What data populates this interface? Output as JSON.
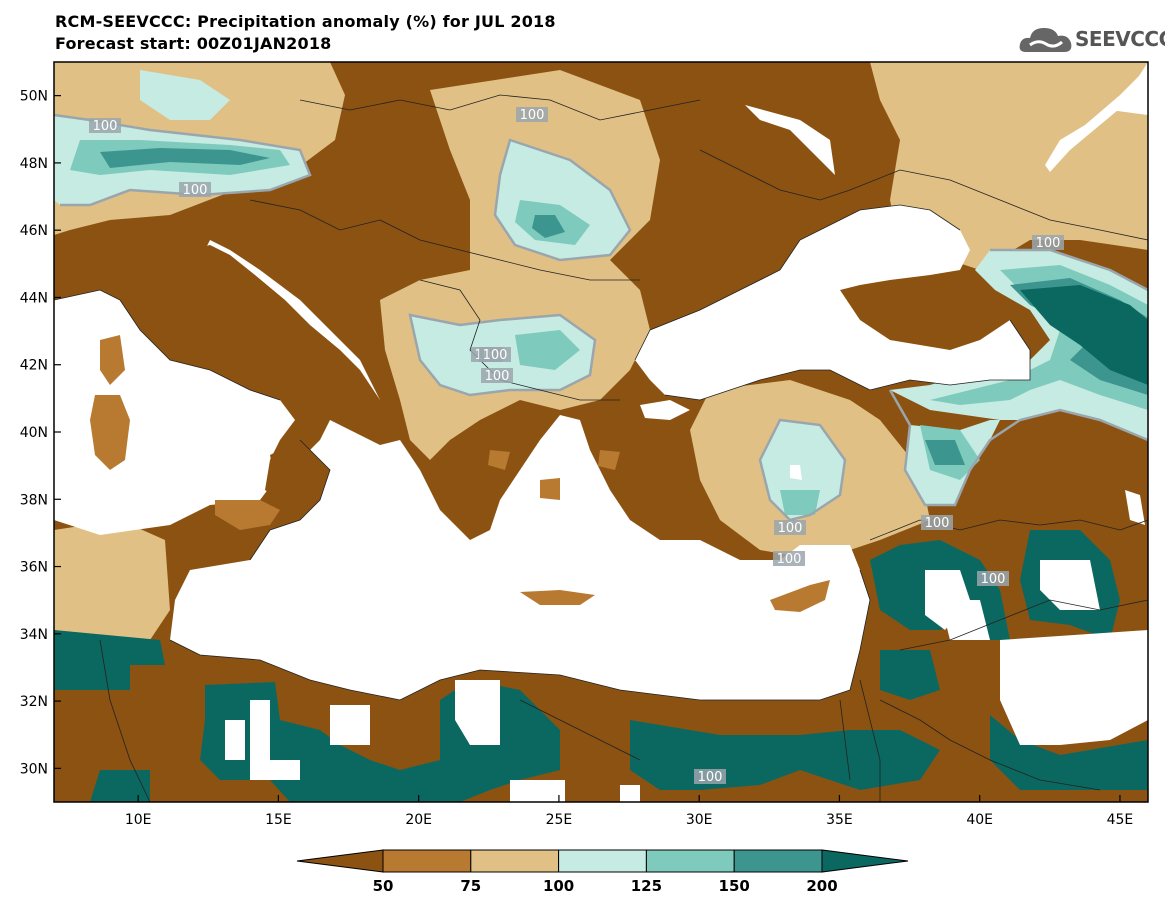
{
  "title": {
    "line1": "RCM-SEEVCCC: Precipitation anomaly (%) for JUL 2018",
    "line2": "Forecast start: 00Z01JAN2018"
  },
  "logo": {
    "text": "SEEVCCC"
  },
  "axes": {
    "lon_range": [
      7,
      46
    ],
    "lat_range": [
      29,
      51
    ],
    "lon_ticks": [
      "10E",
      "15E",
      "20E",
      "25E",
      "30E",
      "35E",
      "40E",
      "45E"
    ],
    "lat_ticks": [
      "30N",
      "32N",
      "34N",
      "36N",
      "38N",
      "40N",
      "42N",
      "44N",
      "46N",
      "48N",
      "50N"
    ]
  },
  "contour_labels": [
    "100",
    "100",
    "100",
    "100",
    "100",
    "100",
    "100",
    "100",
    "100",
    "100",
    "100",
    "100"
  ],
  "colorbar": {
    "levels": [
      "50",
      "75",
      "100",
      "125",
      "150",
      "200"
    ],
    "colors": [
      "#8b5212",
      "#b87a30",
      "#e0c084",
      "#c5ebe2",
      "#7ecabd",
      "#3c968f",
      "#0b6861"
    ]
  },
  "colors": {
    "very_dry": "#8b5212",
    "dry": "#b87a30",
    "slightly_dry": "#e0c084",
    "slightly_wet": "#c5ebe2",
    "wet": "#7ecabd",
    "very_wet": "#3c968f",
    "extreme_wet": "#0b6861",
    "contour_100": "#9aa6ad",
    "sea": "#ffffff"
  }
}
